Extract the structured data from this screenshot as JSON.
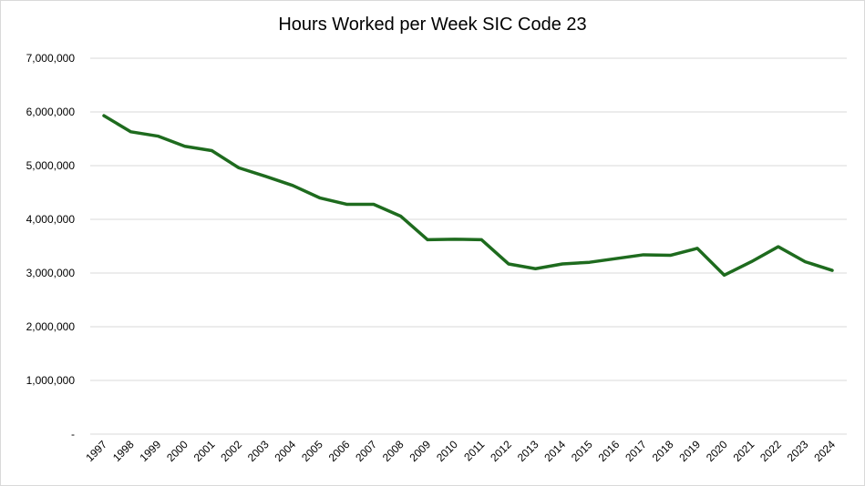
{
  "chart_data": {
    "type": "line",
    "title": "Hours Worked per Week SIC Code 23",
    "xlabel": "",
    "ylabel": "",
    "x": [
      "1997",
      "1998",
      "1999",
      "2000",
      "2001",
      "2002",
      "2003",
      "2004",
      "2005",
      "2006",
      "2007",
      "2008",
      "2009",
      "2010",
      "2011",
      "2012",
      "2013",
      "2014",
      "2015",
      "2016",
      "2017",
      "2018",
      "2019",
      "2020",
      "2021",
      "2022",
      "2023",
      "2024"
    ],
    "series": [
      {
        "values": [
          5930000,
          5630000,
          5550000,
          5360000,
          5280000,
          4960000,
          4800000,
          4630000,
          4400000,
          4280000,
          4280000,
          4060000,
          3620000,
          3630000,
          3620000,
          3170000,
          3080000,
          3170000,
          3200000,
          3270000,
          3340000,
          3330000,
          3460000,
          2960000,
          3210000,
          3490000,
          3210000,
          3050000
        ],
        "color": "#1e6b1e"
      }
    ],
    "ylim": [
      0,
      7000000
    ],
    "yticks": [
      0,
      1000000,
      2000000,
      3000000,
      4000000,
      5000000,
      6000000,
      7000000
    ],
    "ytick_labels": [
      "-",
      "1,000,000",
      "2,000,000",
      "3,000,000",
      "4,000,000",
      "5,000,000",
      "6,000,000",
      "7,000,000"
    ],
    "grid": true,
    "legend": "none"
  }
}
